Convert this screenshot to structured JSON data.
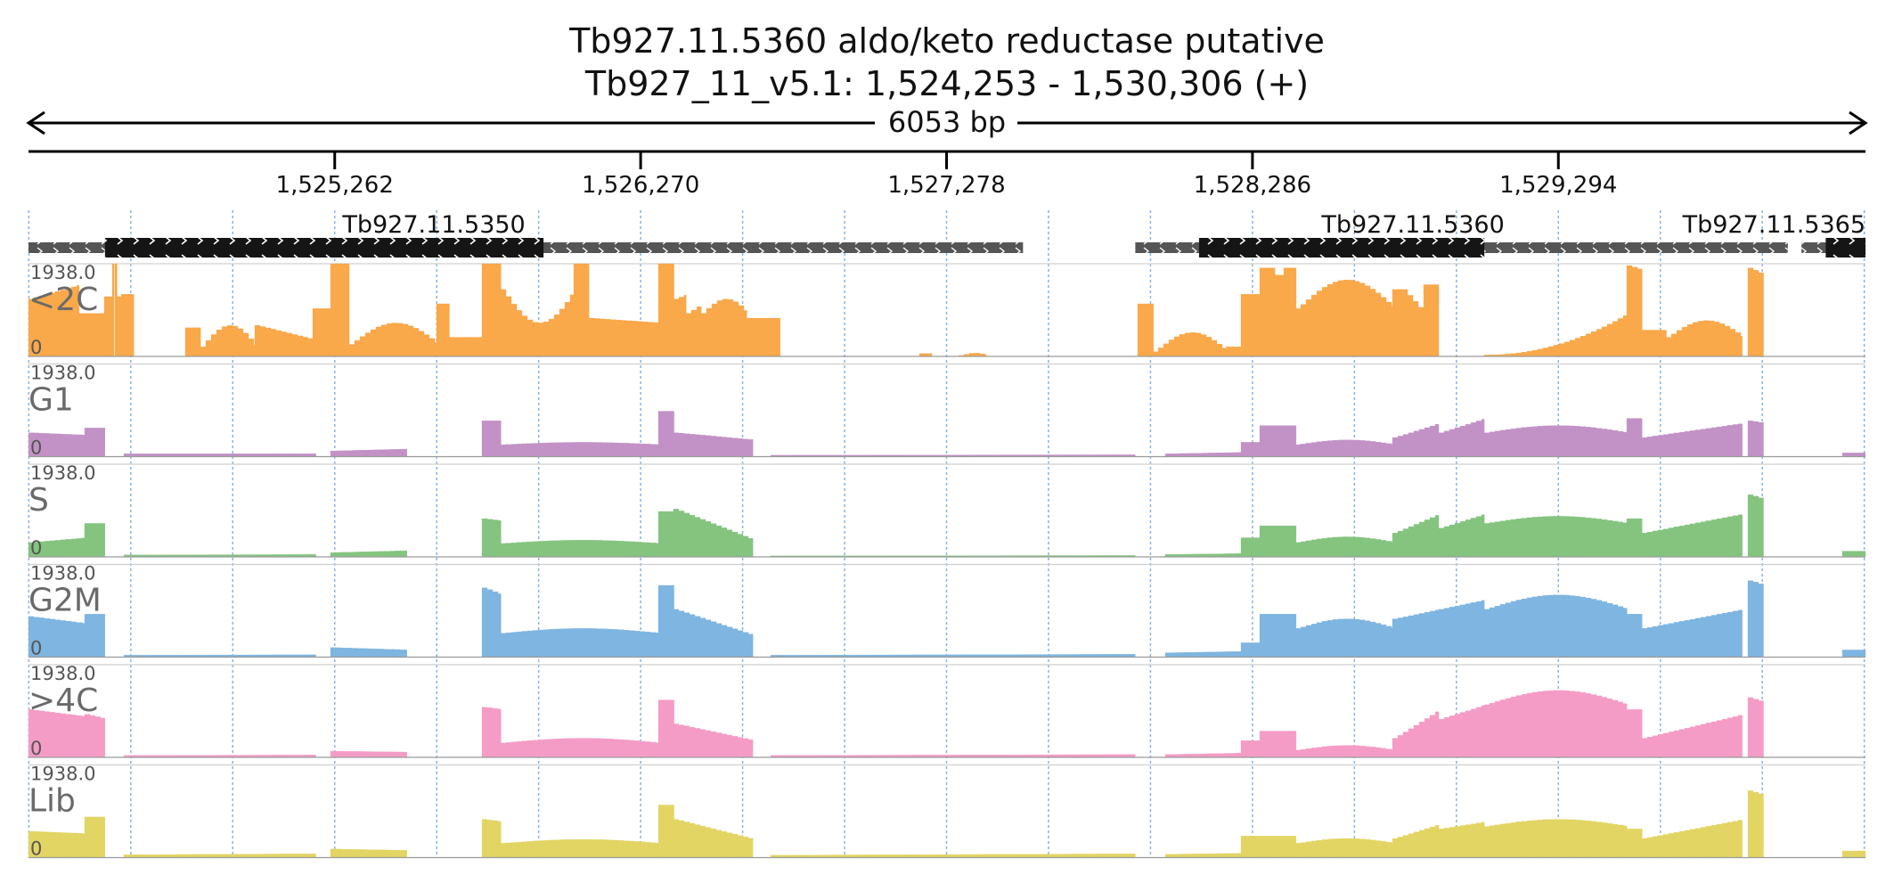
{
  "header": {
    "title": "Tb927.11.5360  aldo/keto reductase  putative",
    "locus": "Tb927_11_v5.1: 1,524,253 - 1,530,306 (+)",
    "span_label": "6053 bp"
  },
  "chart_data": {
    "type": "area",
    "region": {
      "chrom": "Tb927_11_v5.1",
      "start": 1524253,
      "end": 1530306
    },
    "x_ticks": [
      1525262,
      1526270,
      1527278,
      1528286,
      1529294
    ],
    "x_tick_labels": [
      "1,525,262",
      "1,526,270",
      "1,527,278",
      "1,528,286",
      "1,529,294"
    ],
    "grid": true,
    "genes": [
      {
        "name": "Tb927.11.5350",
        "utr_start": 1524253,
        "cds_start": 1524505,
        "cds_end": 1525950,
        "utr_end": 1527530,
        "strand": "+"
      },
      {
        "name": "Tb927.11.5360",
        "utr_start": 1527900,
        "cds_start": 1528110,
        "cds_end": 1529050,
        "utr_end": 1530050,
        "strand": "+"
      },
      {
        "name": "Tb927.11.5365",
        "utr_start": 1530095,
        "cds_start": 1530175,
        "cds_end": 1530306,
        "utr_end": 1530306,
        "strand": "+"
      }
    ],
    "ylim": [
      0,
      1938.0
    ],
    "y_max_label": "1938.0",
    "y_min_label": "0",
    "series": [
      {
        "name": "<2C",
        "color": "#F9A84A",
        "profile": [
          {
            "s": 1524253,
            "e": 1524420,
            "a": 1200,
            "b": 1500
          },
          {
            "s": 1524420,
            "e": 1524505,
            "a": 900,
            "b": 900
          },
          {
            "s": 1524505,
            "e": 1524530,
            "a": 1250,
            "b": 1250
          },
          {
            "s": 1524530,
            "e": 1524535,
            "a": 1938,
            "b": 1938
          },
          {
            "s": 1524540,
            "e": 1524545,
            "a": 1938,
            "b": 1938
          },
          {
            "s": 1524545,
            "e": 1524560,
            "a": 1250,
            "b": 1250
          },
          {
            "s": 1524560,
            "e": 1524600,
            "a": 1300,
            "b": 1300
          },
          {
            "s": 1524770,
            "e": 1524820,
            "a": 600,
            "b": 600
          },
          {
            "s": 1524820,
            "e": 1525000,
            "a": 200,
            "b": 650,
            "shape": "arc"
          },
          {
            "s": 1525000,
            "e": 1525190,
            "a": 650,
            "b": 350
          },
          {
            "s": 1525190,
            "e": 1525250,
            "a": 1000,
            "b": 1000
          },
          {
            "s": 1525250,
            "e": 1525310,
            "a": 1938,
            "b": 1938
          },
          {
            "s": 1525310,
            "e": 1525600,
            "a": 250,
            "b": 700,
            "shape": "arc"
          },
          {
            "s": 1525600,
            "e": 1525640,
            "a": 1100,
            "b": 1100
          },
          {
            "s": 1525640,
            "e": 1525750,
            "a": 400,
            "b": 400
          },
          {
            "s": 1525750,
            "e": 1525810,
            "a": 1938,
            "b": 1938
          },
          {
            "s": 1525810,
            "e": 1526050,
            "a": 1400,
            "b": 700,
            "shape": "arc"
          },
          {
            "s": 1526050,
            "e": 1526100,
            "a": 1938,
            "b": 1938
          },
          {
            "s": 1526100,
            "e": 1526330,
            "a": 800,
            "b": 700
          },
          {
            "s": 1526330,
            "e": 1526380,
            "a": 1938,
            "b": 1938
          },
          {
            "s": 1526380,
            "e": 1526420,
            "a": 1200,
            "b": 1300
          },
          {
            "s": 1526420,
            "e": 1526470,
            "a": 900,
            "b": 1100
          },
          {
            "s": 1526470,
            "e": 1526620,
            "a": 900,
            "b": 1200,
            "shape": "arc"
          },
          {
            "s": 1526620,
            "e": 1526680,
            "a": 800,
            "b": 800
          },
          {
            "s": 1526680,
            "e": 1526730,
            "a": 800,
            "b": 800
          },
          {
            "s": 1527190,
            "e": 1527230,
            "a": 60,
            "b": 60
          },
          {
            "s": 1527320,
            "e": 1527410,
            "a": 20,
            "b": 70,
            "shape": "arc"
          },
          {
            "s": 1527910,
            "e": 1527960,
            "a": 1100,
            "b": 1100
          },
          {
            "s": 1527960,
            "e": 1528200,
            "a": 100,
            "b": 500,
            "shape": "arc"
          },
          {
            "s": 1528200,
            "e": 1528250,
            "a": 200,
            "b": 200
          },
          {
            "s": 1528250,
            "e": 1528310,
            "a": 1300,
            "b": 1300
          },
          {
            "s": 1528310,
            "e": 1528360,
            "a": 1850,
            "b": 1850
          },
          {
            "s": 1528360,
            "e": 1528390,
            "a": 1700,
            "b": 1700
          },
          {
            "s": 1528390,
            "e": 1528430,
            "a": 1850,
            "b": 1850
          },
          {
            "s": 1528430,
            "e": 1528750,
            "a": 1000,
            "b": 1600,
            "shape": "arc"
          },
          {
            "s": 1528750,
            "e": 1528780,
            "a": 1400,
            "b": 1400
          },
          {
            "s": 1528780,
            "e": 1528850,
            "a": 1400,
            "b": 900
          },
          {
            "s": 1528850,
            "e": 1528900,
            "a": 1500,
            "b": 1500
          },
          {
            "s": 1529050,
            "e": 1529520,
            "a": 30,
            "b": 900,
            "shape": "ramp"
          },
          {
            "s": 1529520,
            "e": 1529570,
            "a": 1900,
            "b": 1800
          },
          {
            "s": 1529570,
            "e": 1529650,
            "a": 550,
            "b": 550
          },
          {
            "s": 1529650,
            "e": 1529900,
            "a": 400,
            "b": 750,
            "shape": "arc"
          },
          {
            "s": 1529920,
            "e": 1529970,
            "a": 1850,
            "b": 1700
          }
        ]
      },
      {
        "name": "G1",
        "color": "#C292C6",
        "profile": [
          {
            "s": 1524253,
            "e": 1524440,
            "a": 500,
            "b": 450
          },
          {
            "s": 1524440,
            "e": 1524505,
            "a": 600,
            "b": 600
          },
          {
            "s": 1524570,
            "e": 1525200,
            "a": 60,
            "b": 60
          },
          {
            "s": 1525250,
            "e": 1525500,
            "a": 120,
            "b": 160
          },
          {
            "s": 1525750,
            "e": 1525810,
            "a": 750,
            "b": 750
          },
          {
            "s": 1525810,
            "e": 1526330,
            "a": 250,
            "b": 300,
            "shape": "arc"
          },
          {
            "s": 1526330,
            "e": 1526380,
            "a": 950,
            "b": 950
          },
          {
            "s": 1526380,
            "e": 1526640,
            "a": 500,
            "b": 350
          },
          {
            "s": 1526700,
            "e": 1527900,
            "a": 30,
            "b": 40
          },
          {
            "s": 1528000,
            "e": 1528250,
            "a": 60,
            "b": 90
          },
          {
            "s": 1528250,
            "e": 1528310,
            "a": 300,
            "b": 300
          },
          {
            "s": 1528310,
            "e": 1528430,
            "a": 650,
            "b": 650
          },
          {
            "s": 1528430,
            "e": 1528750,
            "a": 250,
            "b": 350,
            "shape": "arc"
          },
          {
            "s": 1528750,
            "e": 1528900,
            "a": 400,
            "b": 700
          },
          {
            "s": 1528900,
            "e": 1529050,
            "a": 500,
            "b": 800
          },
          {
            "s": 1529050,
            "e": 1529520,
            "a": 500,
            "b": 650,
            "shape": "arc"
          },
          {
            "s": 1529520,
            "e": 1529570,
            "a": 800,
            "b": 800
          },
          {
            "s": 1529570,
            "e": 1529900,
            "a": 400,
            "b": 700
          },
          {
            "s": 1529920,
            "e": 1529970,
            "a": 750,
            "b": 700
          },
          {
            "s": 1530230,
            "e": 1530306,
            "a": 80,
            "b": 80
          }
        ]
      },
      {
        "name": "S",
        "color": "#84C47F",
        "profile": [
          {
            "s": 1524253,
            "e": 1524440,
            "a": 300,
            "b": 400
          },
          {
            "s": 1524440,
            "e": 1524505,
            "a": 700,
            "b": 700
          },
          {
            "s": 1524570,
            "e": 1525200,
            "a": 40,
            "b": 50
          },
          {
            "s": 1525250,
            "e": 1525500,
            "a": 90,
            "b": 130
          },
          {
            "s": 1525750,
            "e": 1525810,
            "a": 800,
            "b": 750
          },
          {
            "s": 1525810,
            "e": 1526330,
            "a": 280,
            "b": 350,
            "shape": "arc"
          },
          {
            "s": 1526330,
            "e": 1526380,
            "a": 950,
            "b": 950
          },
          {
            "s": 1526380,
            "e": 1526640,
            "a": 1000,
            "b": 350
          },
          {
            "s": 1526700,
            "e": 1527900,
            "a": 20,
            "b": 30
          },
          {
            "s": 1528000,
            "e": 1528250,
            "a": 50,
            "b": 70
          },
          {
            "s": 1528250,
            "e": 1528310,
            "a": 400,
            "b": 400
          },
          {
            "s": 1528310,
            "e": 1528430,
            "a": 650,
            "b": 650
          },
          {
            "s": 1528430,
            "e": 1528750,
            "a": 300,
            "b": 420,
            "shape": "arc"
          },
          {
            "s": 1528750,
            "e": 1528900,
            "a": 500,
            "b": 900
          },
          {
            "s": 1528900,
            "e": 1529050,
            "a": 600,
            "b": 900
          },
          {
            "s": 1529050,
            "e": 1529520,
            "a": 700,
            "b": 850,
            "shape": "arc"
          },
          {
            "s": 1529520,
            "e": 1529570,
            "a": 800,
            "b": 800
          },
          {
            "s": 1529570,
            "e": 1529900,
            "a": 500,
            "b": 900
          },
          {
            "s": 1529920,
            "e": 1529970,
            "a": 1300,
            "b": 1200
          },
          {
            "s": 1530230,
            "e": 1530306,
            "a": 120,
            "b": 120
          }
        ]
      },
      {
        "name": "G2M",
        "color": "#7EB5E1",
        "profile": [
          {
            "s": 1524253,
            "e": 1524440,
            "a": 850,
            "b": 700
          },
          {
            "s": 1524440,
            "e": 1524505,
            "a": 900,
            "b": 900
          },
          {
            "s": 1524570,
            "e": 1525200,
            "a": 40,
            "b": 50
          },
          {
            "s": 1525250,
            "e": 1525500,
            "a": 200,
            "b": 150
          },
          {
            "s": 1525750,
            "e": 1525810,
            "a": 1450,
            "b": 1300
          },
          {
            "s": 1525810,
            "e": 1526330,
            "a": 500,
            "b": 600,
            "shape": "arc"
          },
          {
            "s": 1526330,
            "e": 1526380,
            "a": 1500,
            "b": 1500
          },
          {
            "s": 1526380,
            "e": 1526640,
            "a": 1000,
            "b": 450
          },
          {
            "s": 1526700,
            "e": 1527900,
            "a": 40,
            "b": 60
          },
          {
            "s": 1528000,
            "e": 1528250,
            "a": 90,
            "b": 120
          },
          {
            "s": 1528250,
            "e": 1528310,
            "a": 300,
            "b": 300
          },
          {
            "s": 1528310,
            "e": 1528430,
            "a": 900,
            "b": 900
          },
          {
            "s": 1528430,
            "e": 1528750,
            "a": 600,
            "b": 800,
            "shape": "arc"
          },
          {
            "s": 1528750,
            "e": 1528900,
            "a": 800,
            "b": 1000
          },
          {
            "s": 1528900,
            "e": 1529050,
            "a": 1000,
            "b": 1200
          },
          {
            "s": 1529050,
            "e": 1529520,
            "a": 1000,
            "b": 1300,
            "shape": "arc"
          },
          {
            "s": 1529520,
            "e": 1529570,
            "a": 900,
            "b": 900
          },
          {
            "s": 1529570,
            "e": 1529900,
            "a": 600,
            "b": 1000
          },
          {
            "s": 1529920,
            "e": 1529970,
            "a": 1600,
            "b": 1500
          },
          {
            "s": 1530230,
            "e": 1530306,
            "a": 150,
            "b": 150
          }
        ]
      },
      {
        "name": ">4C",
        "color": "#F49CC6",
        "profile": [
          {
            "s": 1524253,
            "e": 1524440,
            "a": 1000,
            "b": 850
          },
          {
            "s": 1524440,
            "e": 1524505,
            "a": 900,
            "b": 800
          },
          {
            "s": 1524570,
            "e": 1525200,
            "a": 40,
            "b": 50
          },
          {
            "s": 1525250,
            "e": 1525500,
            "a": 130,
            "b": 110
          },
          {
            "s": 1525750,
            "e": 1525810,
            "a": 1050,
            "b": 1000
          },
          {
            "s": 1525810,
            "e": 1526330,
            "a": 300,
            "b": 400,
            "shape": "arc"
          },
          {
            "s": 1526330,
            "e": 1526380,
            "a": 1200,
            "b": 1200
          },
          {
            "s": 1526380,
            "e": 1526640,
            "a": 700,
            "b": 350
          },
          {
            "s": 1526700,
            "e": 1527900,
            "a": 40,
            "b": 60
          },
          {
            "s": 1528000,
            "e": 1528250,
            "a": 60,
            "b": 90
          },
          {
            "s": 1528250,
            "e": 1528310,
            "a": 350,
            "b": 350
          },
          {
            "s": 1528310,
            "e": 1528430,
            "a": 550,
            "b": 550
          },
          {
            "s": 1528430,
            "e": 1528750,
            "a": 150,
            "b": 250,
            "shape": "arc"
          },
          {
            "s": 1528750,
            "e": 1528900,
            "a": 400,
            "b": 1000
          },
          {
            "s": 1528900,
            "e": 1529050,
            "a": 800,
            "b": 1100
          },
          {
            "s": 1529050,
            "e": 1529520,
            "a": 1100,
            "b": 1400,
            "shape": "arc"
          },
          {
            "s": 1529520,
            "e": 1529570,
            "a": 1000,
            "b": 1000
          },
          {
            "s": 1529570,
            "e": 1529900,
            "a": 400,
            "b": 900
          },
          {
            "s": 1529920,
            "e": 1529970,
            "a": 1250,
            "b": 1150
          }
        ]
      },
      {
        "name": "Lib",
        "color": "#E2D564",
        "profile": [
          {
            "s": 1524253,
            "e": 1524440,
            "a": 550,
            "b": 500
          },
          {
            "s": 1524440,
            "e": 1524505,
            "a": 850,
            "b": 850
          },
          {
            "s": 1524570,
            "e": 1525200,
            "a": 60,
            "b": 80
          },
          {
            "s": 1525250,
            "e": 1525500,
            "a": 180,
            "b": 150
          },
          {
            "s": 1525750,
            "e": 1525810,
            "a": 800,
            "b": 750
          },
          {
            "s": 1525810,
            "e": 1526330,
            "a": 300,
            "b": 380,
            "shape": "arc"
          },
          {
            "s": 1526330,
            "e": 1526380,
            "a": 1100,
            "b": 1100
          },
          {
            "s": 1526380,
            "e": 1526640,
            "a": 800,
            "b": 380
          },
          {
            "s": 1526700,
            "e": 1527900,
            "a": 50,
            "b": 80
          },
          {
            "s": 1528000,
            "e": 1528250,
            "a": 70,
            "b": 90
          },
          {
            "s": 1528250,
            "e": 1528310,
            "a": 450,
            "b": 450
          },
          {
            "s": 1528310,
            "e": 1528430,
            "a": 450,
            "b": 450
          },
          {
            "s": 1528430,
            "e": 1528750,
            "a": 300,
            "b": 400,
            "shape": "arc"
          },
          {
            "s": 1528750,
            "e": 1528900,
            "a": 400,
            "b": 700
          },
          {
            "s": 1528900,
            "e": 1529050,
            "a": 600,
            "b": 750
          },
          {
            "s": 1529050,
            "e": 1529520,
            "a": 650,
            "b": 800,
            "shape": "arc"
          },
          {
            "s": 1529520,
            "e": 1529570,
            "a": 600,
            "b": 600
          },
          {
            "s": 1529570,
            "e": 1529900,
            "a": 400,
            "b": 800
          },
          {
            "s": 1529920,
            "e": 1529970,
            "a": 1400,
            "b": 1300
          },
          {
            "s": 1530230,
            "e": 1530306,
            "a": 140,
            "b": 140
          }
        ]
      }
    ]
  }
}
